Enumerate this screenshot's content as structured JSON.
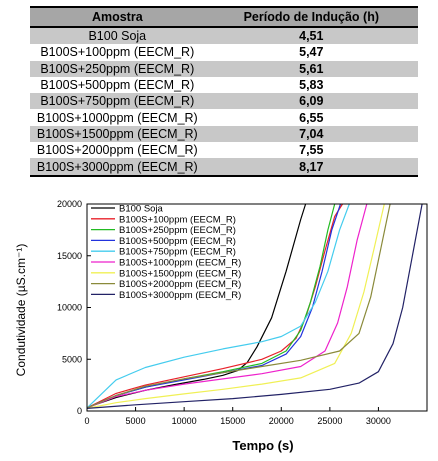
{
  "table": {
    "headers": [
      "Amostra",
      "Período de Indução (h)"
    ],
    "rows": [
      {
        "sample": "B100 Soja",
        "value": "4,51"
      },
      {
        "sample": "B100S+100ppm (EECM_R)",
        "value": "5,47"
      },
      {
        "sample": "B100S+250ppm (EECM_R)",
        "value": "5,61"
      },
      {
        "sample": "B100S+500ppm (EECM_R)",
        "value": "5,83"
      },
      {
        "sample": "B100S+750ppm (EECM_R)",
        "value": "6,09"
      },
      {
        "sample": "B100S+1000ppm (EECM_R)",
        "value": "6,55"
      },
      {
        "sample": "B100S+1500ppm (EECM_R)",
        "value": "7,04"
      },
      {
        "sample": "B100S+2000ppm (EECM_R)",
        "value": "7,55"
      },
      {
        "sample": "B100S+3000ppm (EECM_R)",
        "value": "8,17"
      }
    ]
  },
  "chart_data": {
    "type": "line",
    "title": "",
    "xlabel": "Tempo (s)",
    "ylabel": "Condutividade (µS.cm⁻¹)",
    "xlim": [
      0,
      35000
    ],
    "ylim": [
      0,
      20000
    ],
    "xticks": [
      0,
      5000,
      10000,
      15000,
      20000,
      25000,
      30000
    ],
    "yticks": [
      0,
      5000,
      10000,
      15000,
      20000
    ],
    "grid": false,
    "legend_position": "top-left",
    "series": [
      {
        "name": "B100 Soja",
        "color": "#000000",
        "x": [
          0,
          3000,
          6000,
          9000,
          12000,
          14000,
          15500,
          16500,
          17500,
          19000,
          20500,
          22000,
          22500
        ],
        "y": [
          350,
          1300,
          2000,
          2550,
          3050,
          3450,
          3900,
          4700,
          6200,
          9000,
          13500,
          18500,
          20000
        ]
      },
      {
        "name": "B100S+100ppm (EECM_R)",
        "color": "#e8212a",
        "x": [
          0,
          3000,
          6000,
          10000,
          14000,
          18000,
          20000,
          21500,
          22500,
          23500,
          24500,
          25500,
          26300
        ],
        "y": [
          300,
          1700,
          2500,
          3300,
          4100,
          5000,
          5800,
          7000,
          9000,
          12000,
          15500,
          18800,
          20000
        ]
      },
      {
        "name": "B100S+250ppm (EECM_R)",
        "color": "#22bb22",
        "x": [
          0,
          3000,
          6000,
          10000,
          14000,
          18000,
          20500,
          22000,
          23000,
          24000,
          24800,
          25500
        ],
        "y": [
          300,
          1500,
          2300,
          3100,
          3800,
          4600,
          5800,
          7800,
          10500,
          14000,
          17500,
          20000
        ]
      },
      {
        "name": "B100S+500ppm (EECM_R)",
        "color": "#2233dd",
        "x": [
          0,
          3000,
          6000,
          10000,
          14000,
          18000,
          20500,
          22000,
          23200,
          24200,
          25200,
          26100
        ],
        "y": [
          300,
          1500,
          2300,
          3000,
          3700,
          4400,
          5500,
          7200,
          10000,
          13500,
          17500,
          20000
        ]
      },
      {
        "name": "B100S+750ppm (EECM_R)",
        "color": "#44ccee",
        "x": [
          0,
          3000,
          6000,
          10000,
          14000,
          18000,
          20000,
          22000,
          23500,
          24800,
          26000,
          27000
        ],
        "y": [
          300,
          3000,
          4200,
          5200,
          6000,
          6700,
          7200,
          8200,
          10500,
          13500,
          17500,
          20000
        ]
      },
      {
        "name": "B100S+1000ppm (EECM_R)",
        "color": "#ee22cc",
        "x": [
          0,
          3000,
          6000,
          10000,
          14000,
          18000,
          22000,
          24500,
          25800,
          26800,
          27800,
          28800
        ],
        "y": [
          300,
          1400,
          2000,
          2600,
          3100,
          3600,
          4300,
          5800,
          8500,
          12000,
          16500,
          20000
        ]
      },
      {
        "name": "B100S+1500ppm (EECM_R)",
        "color": "#f0f055",
        "x": [
          0,
          3000,
          6000,
          10000,
          14000,
          18000,
          22000,
          25500,
          27200,
          28500,
          29500,
          30600
        ],
        "y": [
          250,
          800,
          1200,
          1650,
          2100,
          2600,
          3200,
          4600,
          7500,
          11500,
          15500,
          20000
        ]
      },
      {
        "name": "B100S+2000ppm (EECM_R)",
        "color": "#8a8a3a",
        "x": [
          0,
          3000,
          6000,
          10000,
          14000,
          18000,
          22000,
          26000,
          28000,
          29200,
          30200,
          31200
        ],
        "y": [
          300,
          1500,
          2400,
          3100,
          3700,
          4300,
          4900,
          5800,
          7500,
          11000,
          15500,
          20000
        ]
      },
      {
        "name": "B100S+3000ppm (EECM_R)",
        "color": "#222266",
        "x": [
          0,
          5000,
          10000,
          15000,
          20000,
          25000,
          28000,
          30000,
          31500,
          32500,
          33500,
          34500
        ],
        "y": [
          250,
          600,
          900,
          1200,
          1600,
          2100,
          2700,
          3800,
          6500,
          10000,
          15000,
          20000
        ]
      }
    ]
  }
}
